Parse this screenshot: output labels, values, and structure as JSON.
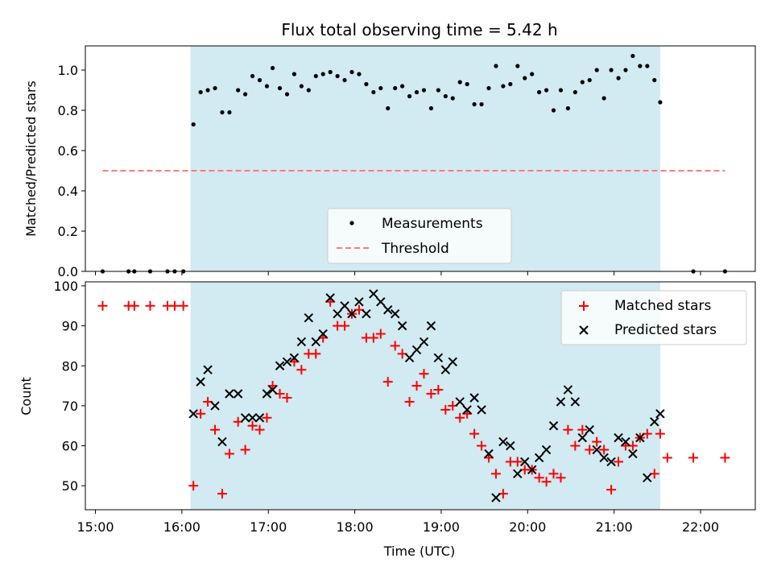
{
  "title": "Flux total observing time = 5.42 h",
  "chart_data": [
    {
      "type": "scatter",
      "title": "Flux total observing time = 5.42 h",
      "xlabel": "",
      "ylabel": "Matched/Predicted stars",
      "xlim": [
        "14:53",
        "22:38"
      ],
      "ylim": [
        0,
        1.12
      ],
      "yticks": [
        "0.0",
        "0.2",
        "0.4",
        "0.6",
        "0.8",
        "1.0"
      ],
      "shaded_interval": {
        "start": "16:06",
        "end": "21:32",
        "color": "#add8e6"
      },
      "threshold": {
        "value": 0.5,
        "x_start": "15:05",
        "x_end": "22:17"
      },
      "legend": {
        "position": "bottom-center",
        "entries": [
          "Measurements",
          "Threshold"
        ]
      },
      "series": [
        {
          "name": "Measurements",
          "marker": "dot",
          "color": "#000000",
          "points": [
            [
              "15:05",
              0
            ],
            [
              "15:23",
              0
            ],
            [
              "15:27",
              0
            ],
            [
              "15:38",
              0
            ],
            [
              "15:50",
              0
            ],
            [
              "15:55",
              0
            ],
            [
              "16:01",
              0
            ],
            [
              "16:08",
              0.73
            ],
            [
              "16:13",
              0.89
            ],
            [
              "16:18",
              0.9
            ],
            [
              "16:23",
              0.91
            ],
            [
              "16:28",
              0.79
            ],
            [
              "16:33",
              0.79
            ],
            [
              "16:39",
              0.9
            ],
            [
              "16:44",
              0.88
            ],
            [
              "16:49",
              0.97
            ],
            [
              "16:54",
              0.95
            ],
            [
              "16:59",
              0.92
            ],
            [
              "17:03",
              1.01
            ],
            [
              "17:08",
              0.91
            ],
            [
              "17:13",
              0.88
            ],
            [
              "17:18",
              0.98
            ],
            [
              "17:23",
              0.92
            ],
            [
              "17:28",
              0.9
            ],
            [
              "17:33",
              0.97
            ],
            [
              "17:38",
              0.98
            ],
            [
              "17:43",
              0.99
            ],
            [
              "17:48",
              0.97
            ],
            [
              "17:53",
              0.95
            ],
            [
              "17:58",
              0.99
            ],
            [
              "18:03",
              0.98
            ],
            [
              "18:08",
              0.93
            ],
            [
              "18:13",
              0.89
            ],
            [
              "18:18",
              0.91
            ],
            [
              "18:23",
              0.81
            ],
            [
              "18:28",
              0.91
            ],
            [
              "18:33",
              0.92
            ],
            [
              "18:38",
              0.87
            ],
            [
              "18:43",
              0.89
            ],
            [
              "18:48",
              0.9
            ],
            [
              "18:53",
              0.81
            ],
            [
              "18:58",
              0.9
            ],
            [
              "19:03",
              0.87
            ],
            [
              "19:08",
              0.86
            ],
            [
              "19:13",
              0.94
            ],
            [
              "19:18",
              0.93
            ],
            [
              "19:23",
              0.83
            ],
            [
              "19:28",
              0.83
            ],
            [
              "19:33",
              0.91
            ],
            [
              "19:38",
              1.02
            ],
            [
              "19:43",
              0.92
            ],
            [
              "19:48",
              0.93
            ],
            [
              "19:53",
              1.02
            ],
            [
              "19:58",
              0.96
            ],
            [
              "20:03",
              0.98
            ],
            [
              "20:08",
              0.89
            ],
            [
              "20:13",
              0.9
            ],
            [
              "20:18",
              0.8
            ],
            [
              "20:23",
              0.9
            ],
            [
              "20:28",
              0.81
            ],
            [
              "20:33",
              0.89
            ],
            [
              "20:38",
              0.94
            ],
            [
              "20:43",
              0.95
            ],
            [
              "20:48",
              1.0
            ],
            [
              "20:53",
              0.86
            ],
            [
              "20:58",
              1.0
            ],
            [
              "21:03",
              0.96
            ],
            [
              "21:08",
              1.0
            ],
            [
              "21:13",
              1.07
            ],
            [
              "21:18",
              1.02
            ],
            [
              "21:23",
              1.02
            ],
            [
              "21:28",
              0.95
            ],
            [
              "21:32",
              0.84
            ],
            [
              "21:55",
              0
            ],
            [
              "22:17",
              0
            ]
          ]
        },
        {
          "name": "Threshold",
          "style": "dashed",
          "color": "#ff7b7b",
          "points": [
            [
              "15:05",
              0.5
            ],
            [
              "22:17",
              0.5
            ]
          ]
        }
      ]
    },
    {
      "type": "scatter",
      "xlabel": "Time (UTC)",
      "ylabel": "Count",
      "xlim": [
        "14:53",
        "22:38"
      ],
      "ylim": [
        44,
        101
      ],
      "yticks": [
        "50",
        "60",
        "70",
        "80",
        "90",
        "100"
      ],
      "xticks": [
        "15:00",
        "16:00",
        "17:00",
        "18:00",
        "19:00",
        "20:00",
        "21:00",
        "22:00"
      ],
      "shaded_interval": {
        "start": "16:06",
        "end": "21:32",
        "color": "#add8e6"
      },
      "legend": {
        "position": "top-right",
        "entries": [
          "Matched stars",
          "Predicted stars"
        ]
      },
      "series": [
        {
          "name": "Matched stars",
          "marker": "plus",
          "color": "#ff0000",
          "points": [
            [
              "15:05",
              95
            ],
            [
              "15:23",
              95
            ],
            [
              "15:27",
              95
            ],
            [
              "15:38",
              95
            ],
            [
              "15:50",
              95
            ],
            [
              "15:55",
              95
            ],
            [
              "16:01",
              95
            ],
            [
              "16:08",
              50
            ],
            [
              "16:13",
              68
            ],
            [
              "16:18",
              71
            ],
            [
              "16:23",
              64
            ],
            [
              "16:28",
              48
            ],
            [
              "16:33",
              58
            ],
            [
              "16:39",
              66
            ],
            [
              "16:44",
              59
            ],
            [
              "16:49",
              65
            ],
            [
              "16:54",
              64
            ],
            [
              "16:59",
              67
            ],
            [
              "17:03",
              75
            ],
            [
              "17:08",
              73
            ],
            [
              "17:13",
              72
            ],
            [
              "17:18",
              81
            ],
            [
              "17:23",
              79
            ],
            [
              "17:28",
              83
            ],
            [
              "17:33",
              83
            ],
            [
              "17:38",
              87
            ],
            [
              "17:43",
              96
            ],
            [
              "17:48",
              90
            ],
            [
              "17:53",
              90
            ],
            [
              "17:58",
              93
            ],
            [
              "18:03",
              94
            ],
            [
              "18:08",
              87
            ],
            [
              "18:13",
              87
            ],
            [
              "18:18",
              88
            ],
            [
              "18:23",
              76
            ],
            [
              "18:28",
              85
            ],
            [
              "18:33",
              83
            ],
            [
              "18:38",
              71
            ],
            [
              "18:43",
              75
            ],
            [
              "18:48",
              78
            ],
            [
              "18:53",
              73
            ],
            [
              "18:58",
              74
            ],
            [
              "19:03",
              69
            ],
            [
              "19:08",
              70
            ],
            [
              "19:13",
              67
            ],
            [
              "19:18",
              68
            ],
            [
              "19:23",
              63
            ],
            [
              "19:28",
              60
            ],
            [
              "19:33",
              57
            ],
            [
              "19:38",
              53
            ],
            [
              "19:43",
              48
            ],
            [
              "19:48",
              56
            ],
            [
              "19:53",
              56
            ],
            [
              "19:58",
              54
            ],
            [
              "20:03",
              54
            ],
            [
              "20:08",
              52
            ],
            [
              "20:13",
              51
            ],
            [
              "20:18",
              53
            ],
            [
              "20:23",
              52
            ],
            [
              "20:28",
              64
            ],
            [
              "20:33",
              60
            ],
            [
              "20:38",
              64
            ],
            [
              "20:43",
              59
            ],
            [
              "20:48",
              61
            ],
            [
              "20:53",
              59
            ],
            [
              "20:58",
              49
            ],
            [
              "21:03",
              56
            ],
            [
              "21:08",
              60
            ],
            [
              "21:13",
              60
            ],
            [
              "21:18",
              62
            ],
            [
              "21:23",
              63
            ],
            [
              "21:28",
              53
            ],
            [
              "21:32",
              63
            ],
            [
              "21:37",
              57
            ],
            [
              "21:55",
              57
            ],
            [
              "22:17",
              57
            ]
          ]
        },
        {
          "name": "Predicted stars",
          "marker": "x",
          "color": "#000000",
          "points": [
            [
              "16:08",
              68
            ],
            [
              "16:13",
              76
            ],
            [
              "16:18",
              79
            ],
            [
              "16:23",
              70
            ],
            [
              "16:28",
              61
            ],
            [
              "16:33",
              73
            ],
            [
              "16:39",
              73
            ],
            [
              "16:44",
              67
            ],
            [
              "16:49",
              67
            ],
            [
              "16:54",
              67
            ],
            [
              "16:59",
              73
            ],
            [
              "17:03",
              74
            ],
            [
              "17:08",
              80
            ],
            [
              "17:13",
              81
            ],
            [
              "17:18",
              82
            ],
            [
              "17:23",
              86
            ],
            [
              "17:28",
              92
            ],
            [
              "17:33",
              86
            ],
            [
              "17:38",
              88
            ],
            [
              "17:43",
              97
            ],
            [
              "17:48",
              93
            ],
            [
              "17:53",
              95
            ],
            [
              "17:58",
              93
            ],
            [
              "18:03",
              96
            ],
            [
              "18:08",
              93
            ],
            [
              "18:13",
              98
            ],
            [
              "18:18",
              96
            ],
            [
              "18:23",
              94
            ],
            [
              "18:28",
              93
            ],
            [
              "18:33",
              90
            ],
            [
              "18:38",
              82
            ],
            [
              "18:43",
              84
            ],
            [
              "18:48",
              86
            ],
            [
              "18:53",
              90
            ],
            [
              "18:58",
              82
            ],
            [
              "19:03",
              79
            ],
            [
              "19:08",
              81
            ],
            [
              "19:13",
              71
            ],
            [
              "19:18",
              69
            ],
            [
              "19:23",
              72
            ],
            [
              "19:28",
              69
            ],
            [
              "19:33",
              58
            ],
            [
              "19:38",
              47
            ],
            [
              "19:43",
              61
            ],
            [
              "19:48",
              60
            ],
            [
              "19:53",
              53
            ],
            [
              "19:58",
              56
            ],
            [
              "20:03",
              54
            ],
            [
              "20:08",
              57
            ],
            [
              "20:13",
              59
            ],
            [
              "20:18",
              65
            ],
            [
              "20:23",
              71
            ],
            [
              "20:28",
              74
            ],
            [
              "20:33",
              71
            ],
            [
              "20:38",
              62
            ],
            [
              "20:43",
              64
            ],
            [
              "20:48",
              59
            ],
            [
              "20:53",
              57
            ],
            [
              "20:58",
              56
            ],
            [
              "21:03",
              62
            ],
            [
              "21:08",
              61
            ],
            [
              "21:13",
              58
            ],
            [
              "21:18",
              62
            ],
            [
              "21:23",
              52
            ],
            [
              "21:28",
              66
            ],
            [
              "21:32",
              68
            ]
          ]
        }
      ]
    }
  ]
}
